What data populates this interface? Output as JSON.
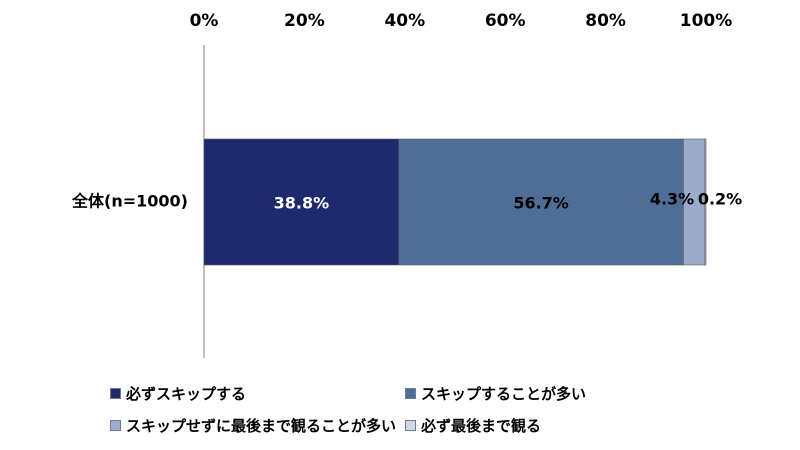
{
  "chart_data": {
    "type": "bar",
    "orientation": "horizontal",
    "stacked": true,
    "title": "",
    "xlabel": "",
    "ylabel": "",
    "xlim": [
      0,
      100
    ],
    "x_ticks": [
      "0%",
      "20%",
      "40%",
      "60%",
      "80%",
      "100%"
    ],
    "x_tick_values": [
      0,
      20,
      40,
      60,
      80,
      100
    ],
    "categories": [
      "全体(n=1000)"
    ],
    "series": [
      {
        "name": "必ずスキップする",
        "values": [
          38.8
        ],
        "label": "38.8%",
        "color": "#1f2a6e",
        "label_color": "#ffffff"
      },
      {
        "name": "スキップすることが多い",
        "values": [
          56.7
        ],
        "label": "56.7%",
        "color": "#4f6e97",
        "label_color": "#000000"
      },
      {
        "name": "スキップせずに最後まで観ることが多い",
        "values": [
          4.3
        ],
        "label": "4.3%",
        "color": "#9aaccb",
        "label_color": "#000000"
      },
      {
        "name": "必ず最後まで観る",
        "values": [
          0.2
        ],
        "label": "0.2%",
        "color": "#cdd7e8",
        "label_color": "#000000"
      }
    ],
    "legend_position": "bottom",
    "grid": false
  }
}
